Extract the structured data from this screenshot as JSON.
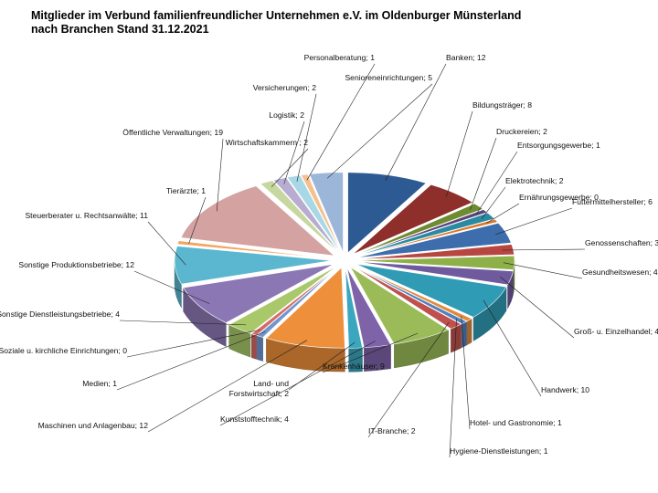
{
  "title": {
    "line1": "Mitglieder im Verbund familienfreundlicher Unternehmen e.V. im Oldenburger Münsterland",
    "line2": "nach Branchen Stand 31.12.2021"
  },
  "chart_data": {
    "type": "pie",
    "title": "Mitglieder im Verbund familienfreundlicher Unternehmen e.V. im Oldenburger Münsterland nach Branchen Stand 31.12.2021",
    "style": "3d-exploded",
    "legend": "none",
    "data_labels": "category; value",
    "slices": [
      {
        "label": "Banken",
        "value": 12,
        "text": "Banken; 12",
        "color": "#2E5A93"
      },
      {
        "label": "Bildungsträger",
        "value": 8,
        "text": "Bildungsträger; 8",
        "color": "#8E2F2C"
      },
      {
        "label": "Druckereien",
        "value": 2,
        "text": "Druckereien; 2",
        "color": "#6E8B2F"
      },
      {
        "label": "Entsorgungsgewerbe",
        "value": 1,
        "text": "Entsorgungsgewerbe; 1",
        "color": "#5B447E"
      },
      {
        "label": "Elektrotechnik",
        "value": 2,
        "text": "Elektrotechnik; 2",
        "color": "#2A8AA1"
      },
      {
        "label": "Ernährungsgewerbe",
        "value": 0,
        "text": "Ernährungsgewerbe; 0",
        "color": "#D9772A"
      },
      {
        "label": "Futtermittelhersteller",
        "value": 6,
        "text": "Futtermittelhersteller; 6",
        "color": "#3E6DAD"
      },
      {
        "label": "Genossenschaften",
        "value": 3,
        "text": "Genossenschaften; 3",
        "color": "#B84640"
      },
      {
        "label": "Gesundheitswesen",
        "value": 4,
        "text": "Gesundheitswesen; 4",
        "color": "#8DB048"
      },
      {
        "label": "Groß- u. Einzelhandel",
        "value": 4,
        "text": "Groß- u. Einzelhandel; 4",
        "color": "#705A9E"
      },
      {
        "label": "Handwerk",
        "value": 10,
        "text": "Handwerk; 10",
        "color": "#2F9BB5"
      },
      {
        "label": "Hotel- und Gastronomie",
        "value": 1,
        "text": "Hotel- und Gastronomie; 1",
        "color": "#E08A3C"
      },
      {
        "label": "Hygiene-Dienstleistungen",
        "value": 1,
        "text": "Hygiene-Dienstleistungen; 1",
        "color": "#4F81BD"
      },
      {
        "label": "IT-Branche",
        "value": 2,
        "text": "IT-Branche; 2",
        "color": "#C0504D"
      },
      {
        "label": "Krankenhäuser",
        "value": 9,
        "text": "Krankenhäuser; 9",
        "color": "#9BBB59"
      },
      {
        "label": "Kunststofftechnik",
        "value": 4,
        "text": "Kunststofftechnik; 4",
        "color": "#7E63A8"
      },
      {
        "label": "Land- und Forstwirtschaft",
        "value": 2,
        "text": "Land- und\nForstwirtschaft; 2",
        "color": "#3BA7BF"
      },
      {
        "label": "Maschinen und Anlagenbau",
        "value": 12,
        "text": "Maschinen und Anlagenbau; 12",
        "color": "#ED8F3B"
      },
      {
        "label": "Medien",
        "value": 1,
        "text": "Medien; 1",
        "color": "#7096D0"
      },
      {
        "label": "Soziale u. kirchliche Einrichtungen",
        "value": 0,
        "text": "Soziale u. kirchliche Einrichtungen; 0",
        "color": "#D66A66"
      },
      {
        "label": "Sonstige Dienstleistungsbetriebe",
        "value": 4,
        "text": "Sonstige Dienstleistungsbetriebe; 4",
        "color": "#A8C86A"
      },
      {
        "label": "Sonstige Produktionsbetriebe",
        "value": 12,
        "text": "Sonstige Produktionsbetriebe; 12",
        "color": "#8C77B5"
      },
      {
        "label": "Steuerberater u. Rechtsanwälte",
        "value": 11,
        "text": "Steuerberater u. Rechtsanwälte; 11",
        "color": "#5BB7CF"
      },
      {
        "label": "Tierärzte",
        "value": 1,
        "text": "Tierärzte; 1",
        "color": "#F4A460"
      },
      {
        "label": "Öffentliche Verwaltungen",
        "value": 19,
        "text": "Öffentliche Verwaltungen; 19",
        "color": "#D4A3A1"
      },
      {
        "label": "Wirtschaftskammern",
        "value": 2,
        "text": "Wirtschaftskammern ; 2",
        "color": "#C6D7A0"
      },
      {
        "label": "Logistik",
        "value": 2,
        "text": "Logistik; 2",
        "color": "#B8ADD0"
      },
      {
        "label": "Versicherungen",
        "value": 2,
        "text": "Versicherungen; 2",
        "color": "#A8D8E5"
      },
      {
        "label": "Personalberatung",
        "value": 1,
        "text": "Personalberatung; 1",
        "color": "#F6C08E"
      },
      {
        "label": "Senioreneinrichtungen",
        "value": 5,
        "text": "Senioreneinrichtungen; 5",
        "color": "#9CB6DA"
      }
    ]
  }
}
